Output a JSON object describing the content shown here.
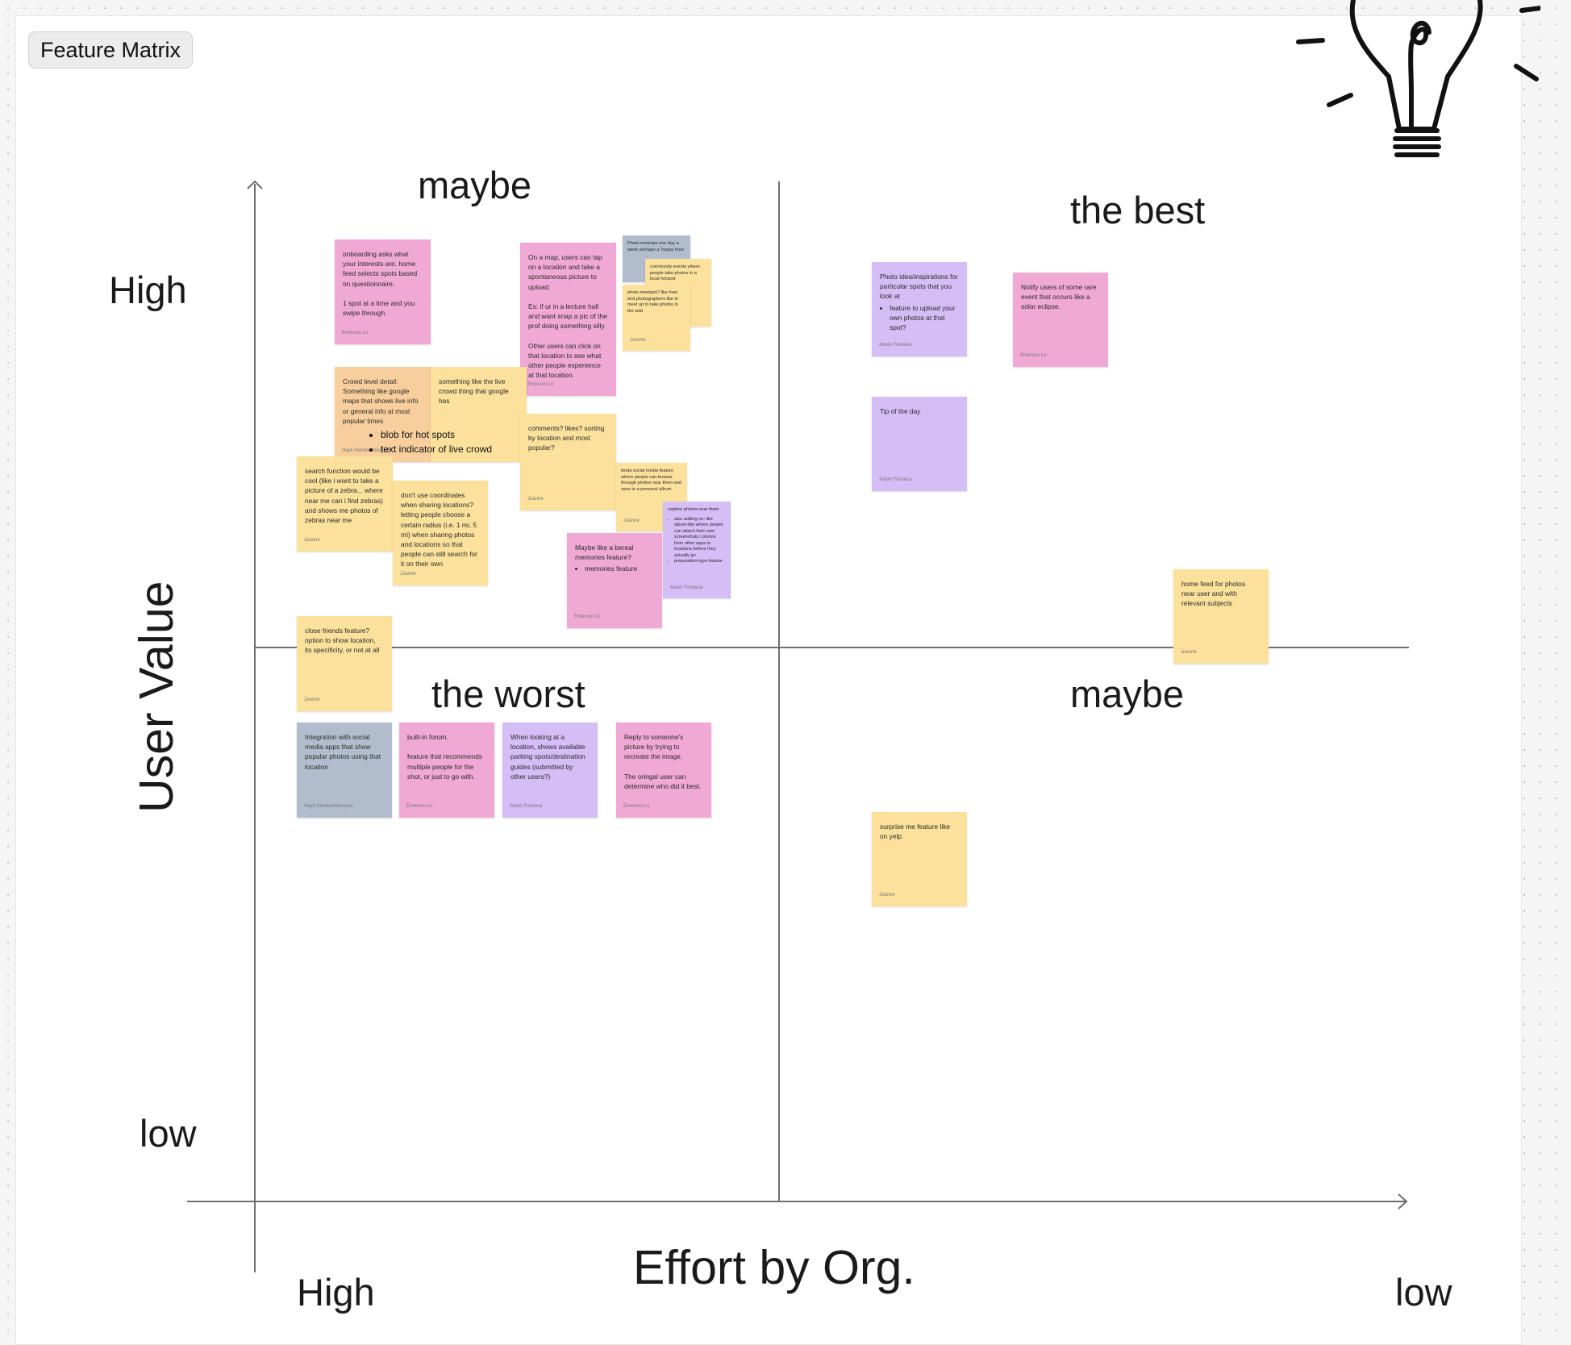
{
  "frame": {
    "label": "Feature Matrix"
  },
  "axes": {
    "y_title": "User Value",
    "x_title": "Effort by Org.",
    "y_high": "High",
    "y_low": "low",
    "x_high": "High",
    "x_low": "low"
  },
  "quadrants": {
    "top_left": "maybe",
    "top_right": "the best",
    "bottom_left": "the worst",
    "bottom_right": "maybe"
  },
  "colors": {
    "pink": "#f0a8d5",
    "yellow": "#fbe19b",
    "orange": "#f8cf9c",
    "purple": "#d5bdf5",
    "gray": "#b1bdcc"
  },
  "stickies": {
    "onboarding": {
      "text": "onboarding asks what your interests are. home feed selects spots based on questionnaire.\n\n1 spot at a time and you swipe through.",
      "author": "Emerson Lo"
    },
    "map_tap": {
      "text": "On a map, users can tap on a location and take a spontaneous picture to upload.\n\nEx: if ur in a lecture hall and want snap a pic of the prof doing something silly.\n\nOther users can click on that location to see what other people experience at that location.",
      "author": "Emerson Lo"
    },
    "photo_meetups_gray": {
      "text": "Photo meetups one day a week perhaps a 'happy hour'",
      "author": ""
    },
    "community_events": {
      "text": "community events where people take photos in a local hotspot",
      "author": ""
    },
    "photo_meetups_yellow": {
      "text": "photo meetups? like how bird photographers like to meet up to take photos in the wild",
      "author": "Joanne"
    },
    "crowd_level": {
      "text": "Crowd level detail: Something like google maps that shows live info or general info at most popular times",
      "author": "Hayk Hambardzumyan"
    },
    "crowd_bullets": [
      "blob for hot spots",
      "text indicator of live crowd"
    ],
    "live_crowd": {
      "text": "something like the live crowd thing that google has",
      "author": ""
    },
    "comments_likes": {
      "text": "comments? likes? sorting by location and most popular?",
      "author": "Joanne"
    },
    "search_function": {
      "text": "search function would be cool (like i want to take a picture of a zebra... where near me can i find zebras) and shows me photos of zebras near me",
      "author": "Joanne"
    },
    "coordinates": {
      "text": "don't use coordinates when sharing locations? letting people choose a certain radius (i.e. 1 mi, 5 mi) when sharing photos and locations so that people can still search for it on their own",
      "author": "Joanne"
    },
    "social_media": {
      "text": "kinda social media feature where people can browse through photos near them and save to a personal album",
      "author": "Joanne"
    },
    "photos_near_them": {
      "text": "explore photos near them",
      "author": "Adam Fonseca"
    },
    "photos_near_bullets": [
      "also adding on: like album-like where people can attach their own screenshots / photos from other apps to locations before they actually go",
      "preparation-type feature"
    ],
    "bereal": {
      "text": "Maybe like a bereal memories feature?",
      "author": "Emerson Lo"
    },
    "bereal_bullets": [
      "memories feature"
    ],
    "close_friends": {
      "text": "close friends feature? option to show location, its specificity, or not at all",
      "author": "Joanne"
    },
    "integration": {
      "text": "Integration with social media apps that show popular photos using that location",
      "author": "Hayk Hambardzumyan"
    },
    "forum": {
      "text": "built-in forum.\n\nfeature that recommends multiple people for the shot, or just to go with.",
      "author": "Emerson Lo"
    },
    "parking": {
      "text": "When looking at a location, shows available parking spots/destination guides (submitted by other users?)",
      "author": "Adam Fonseca"
    },
    "recreate": {
      "text": "Reply to someone's picture by trying to recreate the image.\n\nThe oringal user can determine who did it best.",
      "author": "Emerson Lo"
    },
    "photo_idea": {
      "text": "Photo idea/inspirations for particular spots that you look at",
      "author": "Adam Fonseca"
    },
    "photo_idea_bullets": [
      "feature to upload your own photos at that spot?"
    ],
    "solar_eclipse": {
      "text": "Notify users of some rare event that occurs like a solar eclipse.",
      "author": "Emerson Lo"
    },
    "tip_of_day": {
      "text": "Tip of the day",
      "author": "Adam Fonseca"
    },
    "home_feed": {
      "text": "home feed for photos near user and with relevant subjects",
      "author": "Joanne"
    },
    "surprise_me": {
      "text": "surprise me feature like on yelp",
      "author": "Joanne"
    }
  }
}
